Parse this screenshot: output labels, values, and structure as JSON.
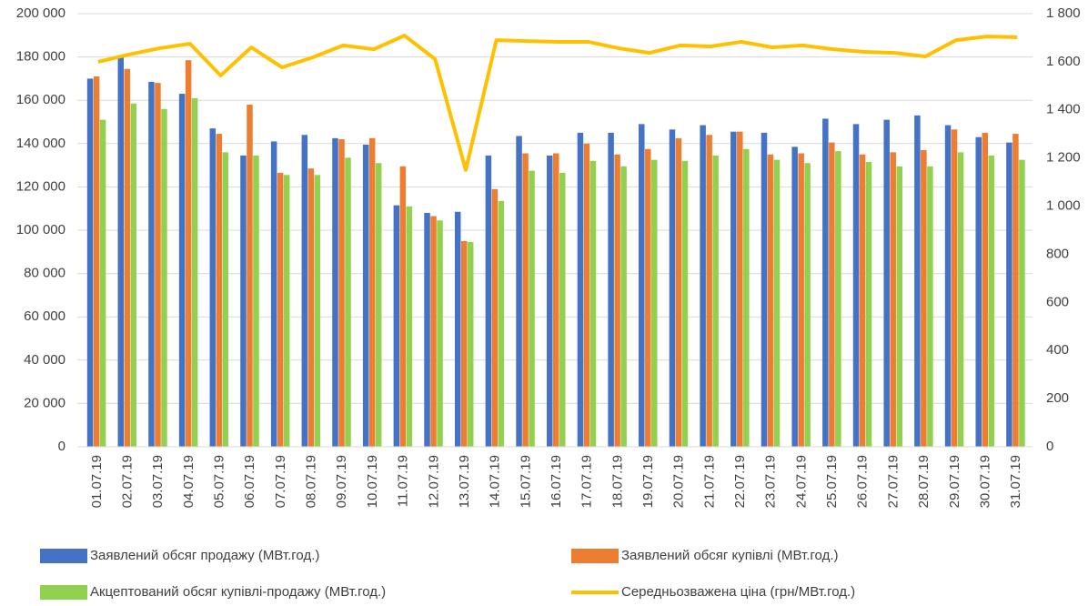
{
  "chart_data": {
    "type": "bar-line",
    "categories": [
      "01.07.19",
      "02.07.19",
      "03.07.19",
      "04.07.19",
      "05.07.19",
      "06.07.19",
      "07.07.19",
      "08.07.19",
      "09.07.19",
      "10.07.19",
      "11.07.19",
      "12.07.19",
      "13.07.19",
      "14.07.19",
      "15.07.19",
      "16.07.19",
      "17.07.19",
      "18.07.19",
      "19.07.19",
      "20.07.19",
      "21.07.19",
      "22.07.19",
      "23.07.19",
      "24.07.19",
      "25.07.19",
      "26.07.19",
      "27.07.19",
      "28.07.19",
      "29.07.19",
      "30.07.19",
      "31.07.19"
    ],
    "series": [
      {
        "name": "Заявлений обсяг продажу (МВт.год.)",
        "color": "#4472c4",
        "kind": "bar",
        "values": [
          170000,
          180000,
          168500,
          163000,
          147000,
          134500,
          141000,
          144000,
          142500,
          139500,
          111500,
          108000,
          108500,
          134500,
          143500,
          134500,
          145000,
          145000,
          149000,
          146500,
          148500,
          145500,
          145000,
          138500,
          151500,
          149000,
          151000,
          153000,
          148500,
          143000,
          140500
        ]
      },
      {
        "name": "Заявлений обсяг купівлі (МВт.год.)",
        "color": "#ed7d31",
        "kind": "bar",
        "values": [
          171000,
          174500,
          168000,
          178500,
          144500,
          158000,
          126500,
          128500,
          142000,
          142500,
          129500,
          106500,
          95000,
          119000,
          135500,
          135500,
          140000,
          135000,
          137500,
          142500,
          144000,
          145500,
          135000,
          135500,
          140500,
          135000,
          136000,
          137000,
          146500,
          145000,
          144500
        ]
      },
      {
        "name": "Акцептований обсяг купівлі-продажу (МВт.год.)",
        "color": "#92d050",
        "kind": "bar",
        "values": [
          151000,
          158500,
          156000,
          161000,
          136000,
          134500,
          125500,
          125500,
          133500,
          131000,
          111000,
          104500,
          94500,
          113500,
          127500,
          126500,
          132000,
          129500,
          132500,
          132000,
          134500,
          137500,
          132500,
          131000,
          136500,
          131500,
          129500,
          129500,
          136000,
          134500,
          132500
        ]
      },
      {
        "name": "Середньозважена ціна (грн/МВт.год.)",
        "color": "#ffc000",
        "kind": "line",
        "axis": "y2",
        "values": [
          1600,
          1630,
          1656,
          1675,
          1543,
          1660,
          1577,
          1618,
          1668,
          1652,
          1709,
          1611,
          1150,
          1690,
          1686,
          1683,
          1683,
          1656,
          1637,
          1668,
          1664,
          1683,
          1660,
          1668,
          1652,
          1641,
          1637,
          1622,
          1690,
          1705,
          1702
        ]
      }
    ],
    "ylim": [
      0,
      200000
    ],
    "yticks": [
      0,
      {
        "value": 20000,
        "label": "20 000"
      },
      {
        "value": 40000,
        "label": "40 000"
      },
      {
        "value": 60000,
        "label": "60 000"
      },
      {
        "value": 80000,
        "label": "80 000"
      },
      {
        "value": 100000,
        "label": "100 000"
      },
      {
        "value": 120000,
        "label": "120 000"
      },
      {
        "value": 140000,
        "label": "140 000"
      },
      {
        "value": 160000,
        "label": "160 000"
      },
      {
        "value": 180000,
        "label": "180 000"
      },
      {
        "value": 200000,
        "label": "200 000"
      }
    ],
    "y2lim": [
      0,
      1800
    ],
    "y2ticks": [
      0,
      200,
      400,
      600,
      800,
      {
        "value": 1000,
        "label": "1 000"
      },
      {
        "value": 1200,
        "label": "1 200"
      },
      {
        "value": 1400,
        "label": "1 400"
      },
      {
        "value": 1600,
        "label": "1 600"
      },
      {
        "value": 1800,
        "label": "1 800"
      }
    ],
    "grid": true
  }
}
